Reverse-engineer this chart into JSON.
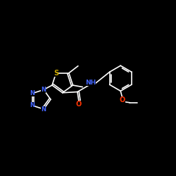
{
  "bg_color": "#000000",
  "atom_colors": {
    "N": "#4466ff",
    "O": "#ff3300",
    "S": "#ccaa00",
    "white": "#ffffff"
  },
  "figsize": [
    2.5,
    2.5
  ],
  "dpi": 100,
  "lw": 1.2
}
